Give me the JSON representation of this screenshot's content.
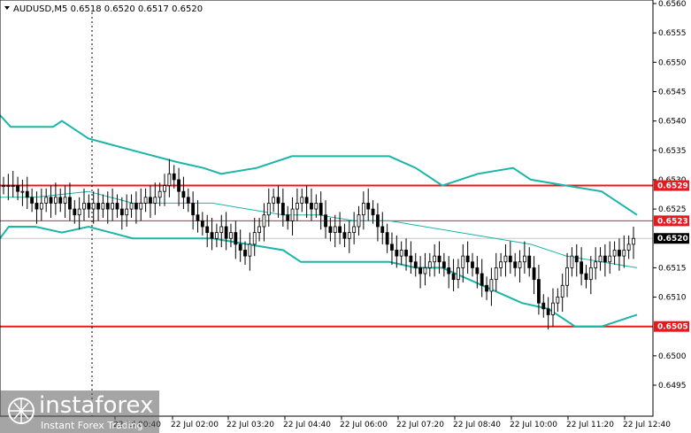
{
  "chart_data": {
    "type": "candlestick",
    "title": "AUDUSD,M5  0.6518 0.6520 0.6517 0.6520",
    "symbol": "AUDUSD,M5",
    "ohlc_header": [
      "0.6518",
      "0.6520",
      "0.6517",
      "0.6520"
    ],
    "ylim": [
      0.649,
      0.656
    ],
    "y_ticks": [
      "0.6560",
      "0.6555",
      "0.6550",
      "0.6545",
      "0.6540",
      "0.6535",
      "0.6530",
      "0.6525",
      "0.6515",
      "0.6510",
      "0.6500",
      "0.6495"
    ],
    "x_ticks": [
      "22 Jul 00:40",
      "22 Jul 02:00",
      "22 Jul 03:20",
      "22 Jul 04:40",
      "22 Jul 06:00",
      "22 Jul 07:20",
      "22 Jul 08:40",
      "22 Jul 10:00",
      "22 Jul 11:20",
      "22 Jul 12:40"
    ],
    "levels": [
      {
        "value": 0.6529,
        "label": "0.6529",
        "color": "#e8191c"
      },
      {
        "value": 0.6523,
        "label": "0.6523",
        "color": "#e8191c"
      },
      {
        "value": 0.6505,
        "label": "0.6505",
        "color": "#e8191c"
      }
    ],
    "current_price": {
      "value": 0.652,
      "label": "0.6520"
    },
    "series": [
      {
        "role": "upper-band",
        "color": "#1ab5a8",
        "values": [
          0.654,
          0.6539,
          0.6539,
          0.6539,
          0.6539,
          0.6539,
          0.6539,
          0.6539,
          0.6539,
          0.6539,
          0.6539,
          0.6539,
          0.6539,
          0.6539,
          0.6539,
          0.6539,
          0.6539,
          0.6539,
          0.6539,
          0.6539,
          0.6539,
          0.6539,
          0.6539,
          0.6539,
          0.6539,
          0.6539,
          0.6539,
          0.6539,
          0.6539,
          0.6539,
          0.6539,
          0.6539,
          0.6539,
          0.6539,
          0.6539,
          0.6539,
          0.6539,
          0.6539,
          0.6539,
          0.6539,
          0.6539,
          0.6539,
          0.6539,
          0.6539,
          0.6539,
          0.6539,
          0.6539,
          0.6539,
          0.6539,
          0.6539,
          0.6539,
          0.6539,
          0.6539,
          0.6539,
          0.6539,
          0.6539,
          0.6539,
          0.6539,
          0.6539,
          0.6539,
          0.6539,
          0.6539,
          0.6539,
          0.6539,
          0.6539,
          0.6539,
          0.6539,
          0.6539,
          0.6539,
          0.6539,
          0.6539,
          0.6539,
          0.6539,
          0.6539,
          0.6539,
          0.6539,
          0.6539,
          0.6539,
          0.6539,
          0.6539,
          0.6539,
          0.6539,
          0.6539,
          0.6539,
          0.6539,
          0.6539,
          0.6539,
          0.6539,
          0.6539,
          0.6539,
          0.6539,
          0.6539,
          0.6539,
          0.6539,
          0.6539,
          0.6539,
          0.6539,
          0.6539,
          0.6539,
          0.6539,
          0.6539,
          0.6539,
          0.6539,
          0.6539,
          0.6539,
          0.6539,
          0.6539,
          0.6539,
          0.6539,
          0.6539,
          0.6539,
          0.6539,
          0.6539,
          0.6539,
          0.6539,
          0.6539,
          0.6539,
          0.6539,
          0.6539,
          0.6539,
          0.6539,
          0.6539,
          0.6539,
          0.6539,
          0.6539,
          0.6539,
          0.6539,
          0.6539,
          0.6539,
          0.6539,
          0.6539,
          0.6539,
          0.6539,
          0.6539,
          0.6539,
          0.6539,
          0.6539,
          0.6539,
          0.6539,
          0.6539,
          0.6539,
          0.6539,
          0.6539,
          0.6539,
          0.6539,
          0.6539,
          0.6539,
          0.6539,
          0.6539,
          0.6539,
          0.6539,
          0.6539,
          0.6539,
          0.6539
        ]
      },
      {
        "role": "middle-band",
        "color": "#1ab5a8",
        "values": []
      },
      {
        "role": "lower-band",
        "color": "#1ab5a8",
        "values": []
      }
    ]
  },
  "watermark": {
    "brand": "instaforex",
    "tagline": "Instant Forex Trading"
  }
}
